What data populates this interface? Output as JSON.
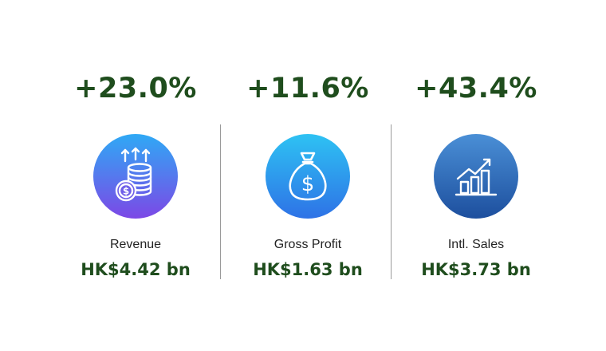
{
  "colors": {
    "accent_green": "#1f4d1d",
    "divider": "#9a9a9a"
  },
  "metrics": [
    {
      "change": "+23.0%",
      "label": "Revenue",
      "value": "HK$4.42 bn",
      "icon": "coins-stack-arrows-up-icon",
      "gradient": [
        "#2fa9f5",
        "#7c48e6"
      ]
    },
    {
      "change": "+11.6%",
      "label": "Gross Profit",
      "value": "HK$1.63 bn",
      "icon": "money-bag-icon",
      "gradient": [
        "#2ec2f3",
        "#2e72e6"
      ]
    },
    {
      "change": "+43.4%",
      "label": "Intl. Sales",
      "value": "HK$3.73 bn",
      "icon": "growth-bar-chart-icon",
      "gradient": [
        "#4a8fd6",
        "#1d4f9e"
      ]
    }
  ]
}
